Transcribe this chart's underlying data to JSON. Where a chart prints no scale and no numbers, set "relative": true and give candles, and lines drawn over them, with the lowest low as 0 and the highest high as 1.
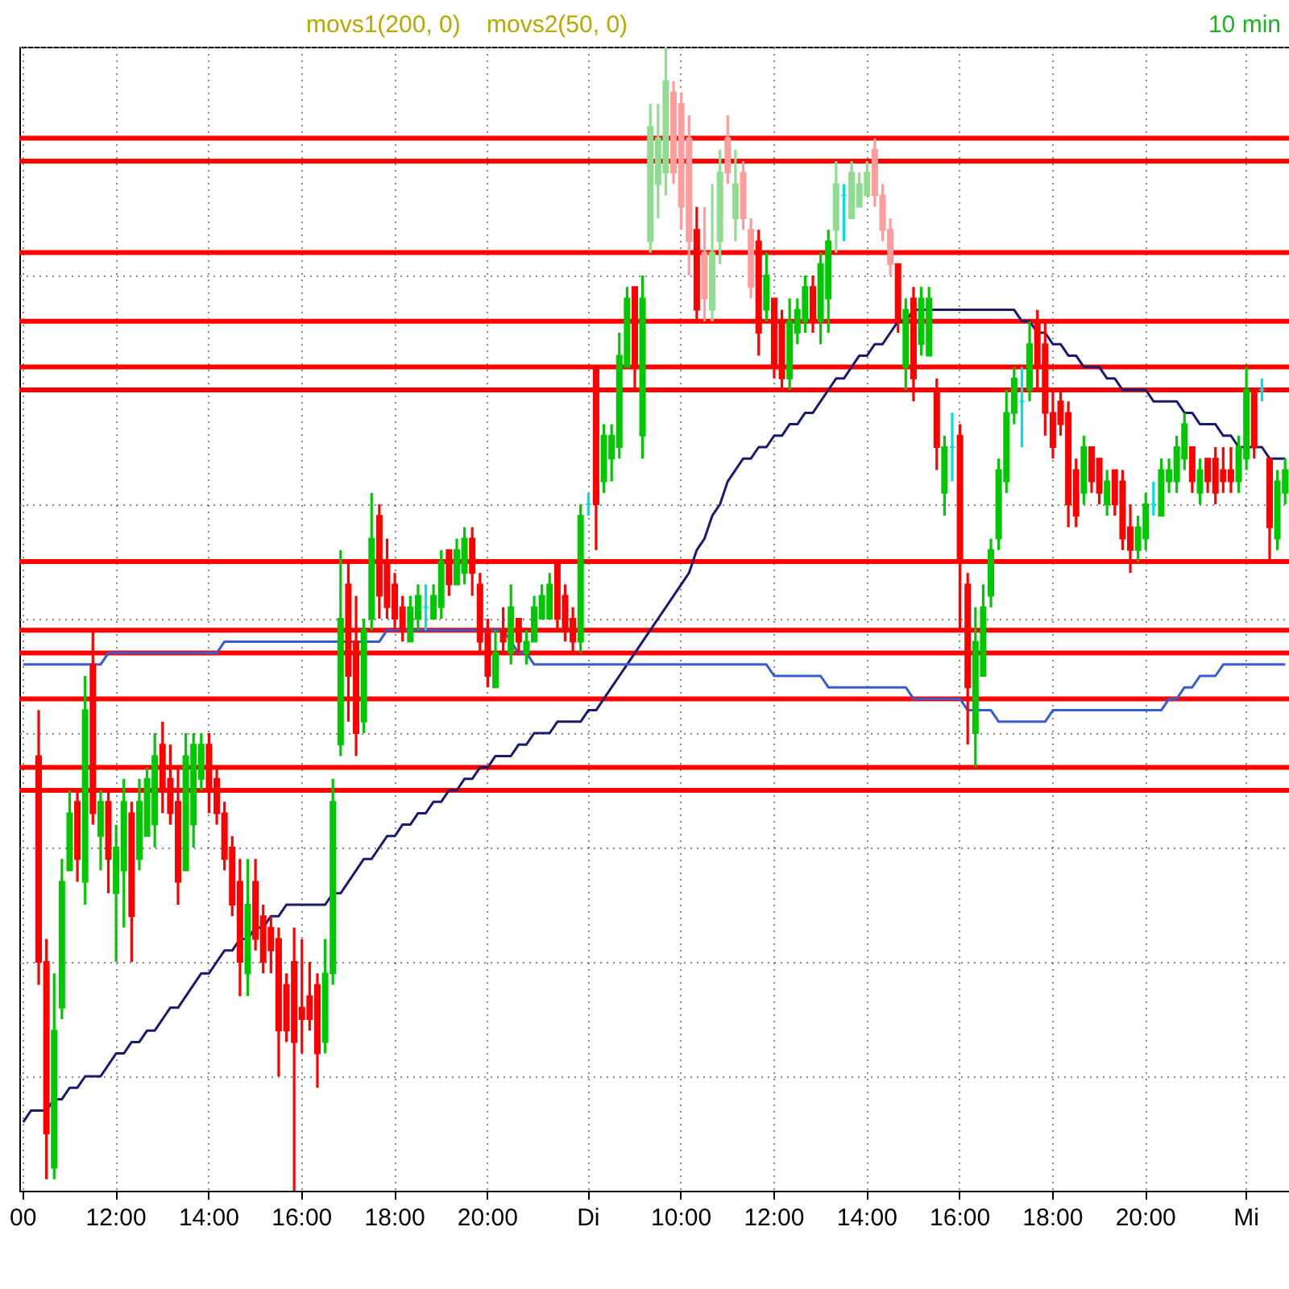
{
  "chart_data": {
    "type": "candlestick",
    "relative": true,
    "grid": true,
    "annotations": [
      "movs1(200, 0)",
      "movs2(50, 0)",
      "10 min"
    ],
    "categories": [
      "00",
      null,
      null,
      null,
      null,
      null,
      null,
      null,
      null,
      null,
      null,
      null,
      "12:00",
      null,
      null,
      null,
      null,
      null,
      null,
      null,
      null,
      null,
      null,
      null,
      "14:00",
      null,
      null,
      null,
      null,
      null,
      null,
      null,
      null,
      null,
      null,
      null,
      "16:00",
      null,
      null,
      null,
      null,
      null,
      null,
      null,
      null,
      null,
      null,
      null,
      "18:00",
      null,
      null,
      null,
      null,
      null,
      null,
      null,
      null,
      null,
      null,
      null,
      "20:00",
      null,
      null,
      null,
      null,
      null,
      null,
      null,
      null,
      null,
      null,
      null,
      null,
      "Di",
      null,
      null,
      null,
      null,
      null,
      null,
      null,
      null,
      null,
      null,
      null,
      "10:00",
      null,
      null,
      null,
      null,
      null,
      null,
      null,
      null,
      null,
      null,
      null,
      "12:00",
      null,
      null,
      null,
      null,
      null,
      null,
      null,
      null,
      null,
      null,
      null,
      "14:00",
      null,
      null,
      null,
      null,
      null,
      null,
      null,
      null,
      null,
      null,
      null,
      "16:00",
      null,
      null,
      null,
      null,
      null,
      null,
      null,
      null,
      null,
      null,
      null,
      "18:00",
      null,
      null,
      null,
      null,
      null,
      null,
      null,
      null,
      null,
      null,
      null,
      "20:00",
      null,
      null,
      null,
      null,
      null,
      null,
      null,
      null,
      null,
      null,
      null,
      null,
      "Mi",
      null,
      null,
      null,
      null,
      null
    ],
    "ohlc": [
      null,
      null,
      [
        0.38,
        0.42,
        0.18,
        0.2
      ],
      [
        0.2,
        0.22,
        0.01,
        0.05
      ],
      [
        0.02,
        0.19,
        0.01,
        0.14
      ],
      [
        0.16,
        0.29,
        0.15,
        0.27
      ],
      [
        0.28,
        0.35,
        0.28,
        0.33
      ],
      [
        0.34,
        0.35,
        0.27,
        0.29
      ],
      [
        0.27,
        0.45,
        0.25,
        0.42
      ],
      [
        0.46,
        0.49,
        0.32,
        0.33
      ],
      [
        0.31,
        0.35,
        0.28,
        0.34
      ],
      [
        0.34,
        0.35,
        0.26,
        0.29
      ],
      [
        0.26,
        0.32,
        0.2,
        0.3
      ],
      [
        0.28,
        0.36,
        0.23,
        0.34
      ],
      [
        0.33,
        0.34,
        0.2,
        0.24
      ],
      [
        0.29,
        0.36,
        0.28,
        0.34
      ],
      [
        0.31,
        0.37,
        0.31,
        0.36
      ],
      [
        0.32,
        0.4,
        0.3,
        0.38
      ],
      [
        0.39,
        0.41,
        0.33,
        0.35
      ],
      [
        0.36,
        0.39,
        0.32,
        0.33
      ],
      [
        0.34,
        0.37,
        0.25,
        0.27
      ],
      [
        0.28,
        0.4,
        0.28,
        0.38
      ],
      [
        0.32,
        0.4,
        0.3,
        0.39
      ],
      [
        0.36,
        0.4,
        0.35,
        0.39
      ],
      [
        0.39,
        0.4,
        0.33,
        0.35
      ],
      [
        0.36,
        0.37,
        0.32,
        0.33
      ],
      [
        0.33,
        0.34,
        0.28,
        0.29
      ],
      [
        0.3,
        0.31,
        0.24,
        0.25
      ],
      [
        0.27,
        0.29,
        0.17,
        0.2
      ],
      [
        0.19,
        0.29,
        0.17,
        0.25
      ],
      [
        0.27,
        0.29,
        0.21,
        0.22
      ],
      [
        0.24,
        0.25,
        0.19,
        0.2
      ],
      [
        0.23,
        0.24,
        0.19,
        0.21
      ],
      [
        0.22,
        0.23,
        0.1,
        0.14
      ],
      [
        0.18,
        0.19,
        0.13,
        0.14
      ],
      [
        0.2,
        0.23,
        0.0,
        0.13
      ],
      [
        0.16,
        0.22,
        0.12,
        0.15
      ],
      [
        0.17,
        0.2,
        0.14,
        0.15
      ],
      [
        0.18,
        0.19,
        0.09,
        0.12
      ],
      [
        0.13,
        0.22,
        0.12,
        0.19
      ],
      [
        0.19,
        0.36,
        0.18,
        0.34
      ],
      [
        0.39,
        0.56,
        0.38,
        0.5
      ],
      [
        0.53,
        0.55,
        0.41,
        0.45
      ],
      [
        0.48,
        0.52,
        0.38,
        0.4
      ],
      [
        0.41,
        0.5,
        0.4,
        0.49
      ],
      [
        0.5,
        0.61,
        0.49,
        0.57
      ],
      [
        0.59,
        0.6,
        0.5,
        0.52
      ],
      [
        0.55,
        0.57,
        0.5,
        0.51
      ],
      [
        0.53,
        0.54,
        0.49,
        0.5
      ],
      [
        0.51,
        0.52,
        0.48,
        0.49
      ],
      [
        0.48,
        0.52,
        0.48,
        0.51
      ],
      [
        0.5,
        0.53,
        0.49,
        0.52
      ],
      [
        0.51,
        0.53,
        0.49,
        0.51
      ],
      [
        0.5,
        0.53,
        0.5,
        0.52
      ],
      [
        0.51,
        0.56,
        0.5,
        0.55
      ],
      [
        0.56,
        0.56,
        0.52,
        0.53
      ],
      [
        0.53,
        0.57,
        0.53,
        0.56
      ],
      [
        0.54,
        0.58,
        0.53,
        0.57
      ],
      [
        0.57,
        0.58,
        0.52,
        0.54
      ],
      [
        0.53,
        0.54,
        0.47,
        0.48
      ],
      [
        0.49,
        0.5,
        0.44,
        0.45
      ],
      [
        0.44,
        0.49,
        0.44,
        0.47
      ],
      [
        0.49,
        0.51,
        0.47,
        0.48
      ],
      [
        0.47,
        0.53,
        0.46,
        0.51
      ],
      [
        0.5,
        0.5,
        0.47,
        0.48
      ],
      [
        0.47,
        0.49,
        0.46,
        0.48
      ],
      [
        0.48,
        0.52,
        0.48,
        0.51
      ],
      [
        0.5,
        0.53,
        0.5,
        0.52
      ],
      [
        0.5,
        0.54,
        0.5,
        0.53
      ],
      [
        0.55,
        0.55,
        0.49,
        0.5
      ],
      [
        0.52,
        0.53,
        0.48,
        0.49
      ],
      [
        0.5,
        0.51,
        0.47,
        0.48
      ],
      [
        0.48,
        0.6,
        0.47,
        0.59
      ],
      [
        0.6,
        0.61,
        0.59,
        0.6
      ],
      [
        0.72,
        0.72,
        0.56,
        0.6
      ],
      [
        0.62,
        0.67,
        0.61,
        0.66
      ],
      [
        0.64,
        0.67,
        0.62,
        0.66
      ],
      [
        0.65,
        0.75,
        0.64,
        0.73
      ],
      [
        0.72,
        0.79,
        0.72,
        0.78
      ],
      [
        0.79,
        0.79,
        0.7,
        0.72
      ],
      [
        0.66,
        0.8,
        0.64,
        0.78
      ],
      [
        0.83,
        0.95,
        0.82,
        0.93
      ],
      [
        0.88,
        0.95,
        0.85,
        0.92
      ],
      [
        0.89,
        1.0,
        0.87,
        0.97
      ],
      [
        0.96,
        0.97,
        0.88,
        0.89
      ],
      [
        0.95,
        0.96,
        0.84,
        0.86
      ],
      [
        0.92,
        0.94,
        0.8,
        0.83
      ],
      [
        0.84,
        0.86,
        0.76,
        0.77
      ],
      [
        0.82,
        0.86,
        0.76,
        0.78
      ],
      [
        0.77,
        0.88,
        0.76,
        0.82
      ],
      [
        0.83,
        0.91,
        0.81,
        0.89
      ],
      [
        0.92,
        0.94,
        0.88,
        0.89
      ],
      [
        0.85,
        0.91,
        0.83,
        0.88
      ],
      [
        0.89,
        0.9,
        0.84,
        0.85
      ],
      [
        0.84,
        0.85,
        0.78,
        0.79
      ],
      [
        0.83,
        0.84,
        0.73,
        0.75
      ],
      [
        0.77,
        0.82,
        0.76,
        0.8
      ],
      [
        0.78,
        0.78,
        0.71,
        0.72
      ],
      [
        0.76,
        0.77,
        0.7,
        0.71
      ],
      [
        0.71,
        0.78,
        0.7,
        0.76
      ],
      [
        0.75,
        0.78,
        0.74,
        0.77
      ],
      [
        0.76,
        0.8,
        0.75,
        0.79
      ],
      [
        0.79,
        0.8,
        0.75,
        0.76
      ],
      [
        0.76,
        0.82,
        0.74,
        0.81
      ],
      [
        0.78,
        0.84,
        0.75,
        0.83
      ],
      [
        0.84,
        0.9,
        0.82,
        0.88
      ],
      [
        0.87,
        0.88,
        0.83,
        0.87
      ],
      [
        0.85,
        0.9,
        0.85,
        0.89
      ],
      [
        0.86,
        0.89,
        0.86,
        0.88
      ],
      [
        0.87,
        0.9,
        0.87,
        0.89
      ],
      [
        0.91,
        0.92,
        0.86,
        0.87
      ],
      [
        0.87,
        0.88,
        0.83,
        0.84
      ],
      [
        0.84,
        0.85,
        0.8,
        0.81
      ],
      [
        0.81,
        0.81,
        0.75,
        0.76
      ],
      [
        0.72,
        0.78,
        0.7,
        0.77
      ],
      [
        0.78,
        0.79,
        0.69,
        0.71
      ],
      [
        0.74,
        0.79,
        0.73,
        0.78
      ],
      [
        0.73,
        0.79,
        0.73,
        0.78
      ],
      [
        0.7,
        0.71,
        0.63,
        0.65
      ],
      [
        0.61,
        0.66,
        0.59,
        0.65
      ],
      [
        0.65,
        0.68,
        0.62,
        0.65
      ],
      [
        0.66,
        0.67,
        0.49,
        0.55
      ],
      [
        0.53,
        0.54,
        0.39,
        0.44
      ],
      [
        0.4,
        0.51,
        0.37,
        0.48
      ],
      [
        0.45,
        0.53,
        0.45,
        0.51
      ],
      [
        0.52,
        0.57,
        0.51,
        0.56
      ],
      [
        0.57,
        0.64,
        0.56,
        0.63
      ],
      [
        0.62,
        0.7,
        0.61,
        0.68
      ],
      [
        0.68,
        0.72,
        0.67,
        0.71
      ],
      [
        0.69,
        0.72,
        0.65,
        0.69
      ],
      [
        0.7,
        0.76,
        0.69,
        0.74
      ],
      [
        0.76,
        0.77,
        0.7,
        0.72
      ],
      [
        0.74,
        0.76,
        0.66,
        0.68
      ],
      [
        0.68,
        0.7,
        0.64,
        0.65
      ],
      [
        0.69,
        0.7,
        0.66,
        0.67
      ],
      [
        0.68,
        0.69,
        0.58,
        0.6
      ],
      [
        0.63,
        0.64,
        0.58,
        0.59
      ],
      [
        0.61,
        0.66,
        0.6,
        0.65
      ],
      [
        0.65,
        0.65,
        0.61,
        0.62
      ],
      [
        0.64,
        0.64,
        0.6,
        0.61
      ],
      [
        0.6,
        0.63,
        0.59,
        0.62
      ],
      [
        0.63,
        0.63,
        0.59,
        0.6
      ],
      [
        0.62,
        0.63,
        0.56,
        0.57
      ],
      [
        0.58,
        0.6,
        0.54,
        0.56
      ],
      [
        0.56,
        0.59,
        0.55,
        0.58
      ],
      [
        0.57,
        0.61,
        0.56,
        0.6
      ],
      [
        0.6,
        0.62,
        0.59,
        0.6
      ],
      [
        0.59,
        0.64,
        0.59,
        0.63
      ],
      [
        0.62,
        0.64,
        0.61,
        0.63
      ],
      [
        0.62,
        0.66,
        0.61,
        0.65
      ],
      [
        0.64,
        0.68,
        0.63,
        0.67
      ],
      [
        0.65,
        0.65,
        0.61,
        0.62
      ],
      [
        0.61,
        0.64,
        0.6,
        0.63
      ],
      [
        0.64,
        0.64,
        0.61,
        0.62
      ],
      [
        0.64,
        0.65,
        0.6,
        0.61
      ],
      [
        0.63,
        0.65,
        0.61,
        0.62
      ],
      [
        0.63,
        0.65,
        0.61,
        0.62
      ],
      [
        0.62,
        0.66,
        0.61,
        0.65
      ],
      [
        0.64,
        0.72,
        0.63,
        0.7
      ],
      [
        0.7,
        0.7,
        0.64,
        0.65
      ],
      [
        0.7,
        0.71,
        0.69,
        0.7
      ],
      [
        0.64,
        0.64,
        0.55,
        0.58
      ],
      [
        0.57,
        0.63,
        0.56,
        0.62
      ],
      [
        0.61,
        0.64,
        0.6,
        0.63
      ]
    ],
    "colors": [
      null,
      null,
      "#ff0000",
      "#ff0000",
      "#00c800",
      "#00c800",
      "#00c800",
      "#ff0000",
      "#00c800",
      "#ff0000",
      "#00c800",
      "#ff0000",
      "#00c800",
      "#00c800",
      "#ff0000",
      "#00c800",
      "#00c800",
      "#00c800",
      "#ff0000",
      "#ff0000",
      "#ff0000",
      "#00c800",
      "#00c800",
      "#00c800",
      "#ff0000",
      "#ff0000",
      "#ff0000",
      "#ff0000",
      "#ff0000",
      "#00c800",
      "#ff0000",
      "#ff0000",
      "#ff0000",
      "#ff0000",
      "#ff0000",
      "#ff0000",
      "#ff0000",
      "#ff0000",
      "#ff0000",
      "#00c800",
      "#00c800",
      "#00c800",
      "#ff0000",
      "#ff0000",
      "#00c800",
      "#00c800",
      "#ff0000",
      "#ff0000",
      "#ff0000",
      "#ff0000",
      "#00c800",
      "#00c800",
      "#00e0e0",
      "#00c800",
      "#00c800",
      "#ff0000",
      "#00c800",
      "#00c800",
      "#ff0000",
      "#ff0000",
      "#ff0000",
      "#00c800",
      "#ff0000",
      "#00c800",
      "#ff0000",
      "#00c800",
      "#00c800",
      "#00c800",
      "#00c800",
      "#ff0000",
      "#ff0000",
      "#ff0000",
      "#00c800",
      "#00e0e0",
      "#ff0000",
      "#00c800",
      "#00c800",
      "#00c800",
      "#00c800",
      "#ff0000",
      "#00c800",
      "#90dc90",
      "#90dc90",
      "#90dc90",
      "#ff9c9c",
      "#ff9c9c",
      "#ff9c9c",
      "#ff0000",
      "#ff9c9c",
      "#90dc90",
      "#90dc90",
      "#ff9c9c",
      "#90dc90",
      "#ff9c9c",
      "#ff9c9c",
      "#ff0000",
      "#00c800",
      "#ff0000",
      "#ff0000",
      "#00c800",
      "#00c800",
      "#00c800",
      "#ff0000",
      "#00c800",
      "#00c800",
      "#90dc90",
      "#00e0e0",
      "#90dc90",
      "#90dc90",
      "#90dc90",
      "#ff9c9c",
      "#ff9c9c",
      "#ff9c9c",
      "#ff0000",
      "#00c800",
      "#ff0000",
      "#00c800",
      "#00c800",
      "#ff0000",
      "#00c800",
      "#00e0e0",
      "#ff0000",
      "#ff0000",
      "#00c800",
      "#00c800",
      "#00c800",
      "#00c800",
      "#00c800",
      "#00c800",
      "#00e0e0",
      "#00c800",
      "#ff0000",
      "#ff0000",
      "#ff0000",
      "#ff0000",
      "#ff0000",
      "#ff0000",
      "#00c800",
      "#ff0000",
      "#ff0000",
      "#00c800",
      "#ff0000",
      "#ff0000",
      "#ff0000",
      "#00c800",
      "#00c800",
      "#00e0e0",
      "#00c800",
      "#00c800",
      "#00c800",
      "#00c800",
      "#ff0000",
      "#00c800",
      "#ff0000",
      "#ff0000",
      "#ff0000",
      "#ff0000",
      "#00c800",
      "#00c800",
      "#ff0000",
      "#00e0e0",
      "#ff0000",
      "#00c800",
      "#00c800"
    ],
    "series": [
      {
        "type": "line",
        "color": "#1a1a6e",
        "values": [
          0.06,
          0.07,
          0.07,
          0.07,
          0.08,
          0.08,
          0.09,
          0.09,
          0.1,
          0.1,
          0.1,
          0.11,
          0.12,
          0.12,
          0.13,
          0.13,
          0.14,
          0.14,
          0.15,
          0.16,
          0.16,
          0.17,
          0.18,
          0.19,
          0.19,
          0.2,
          0.21,
          0.21,
          0.22,
          0.22,
          0.23,
          0.23,
          0.24,
          0.24,
          0.25,
          0.25,
          0.25,
          0.25,
          0.25,
          0.25,
          0.26,
          0.26,
          0.27,
          0.28,
          0.29,
          0.29,
          0.3,
          0.31,
          0.31,
          0.32,
          0.32,
          0.33,
          0.33,
          0.34,
          0.34,
          0.35,
          0.35,
          0.36,
          0.36,
          0.37,
          0.37,
          0.38,
          0.38,
          0.38,
          0.39,
          0.39,
          0.4,
          0.4,
          0.4,
          0.41,
          0.41,
          0.41,
          0.41,
          0.42,
          0.42,
          0.43,
          0.44,
          0.45,
          0.46,
          0.47,
          0.48,
          0.49,
          0.5,
          0.51,
          0.52,
          0.53,
          0.54,
          0.56,
          0.57,
          0.59,
          0.6,
          0.62,
          0.63,
          0.64,
          0.64,
          0.65,
          0.65,
          0.66,
          0.66,
          0.67,
          0.67,
          0.68,
          0.68,
          0.69,
          0.7,
          0.71,
          0.71,
          0.72,
          0.73,
          0.73,
          0.74,
          0.74,
          0.75,
          0.76,
          0.76,
          0.77,
          0.77,
          0.77,
          0.77,
          0.77,
          0.77,
          0.77,
          0.77,
          0.77,
          0.77,
          0.77,
          0.77,
          0.77,
          0.77,
          0.76,
          0.76,
          0.75,
          0.75,
          0.74,
          0.74,
          0.73,
          0.73,
          0.72,
          0.72,
          0.72,
          0.71,
          0.71,
          0.7,
          0.7,
          0.7,
          0.7,
          0.69,
          0.69,
          0.69,
          0.69,
          0.68,
          0.68,
          0.67,
          0.67,
          0.67,
          0.66,
          0.66,
          0.65,
          0.65,
          0.65,
          0.65,
          0.64,
          0.64,
          0.64
        ]
      },
      {
        "type": "line",
        "color": "#3a5ad0",
        "values": [
          0.46,
          0.46,
          0.46,
          0.46,
          0.46,
          0.46,
          0.46,
          0.46,
          0.46,
          0.46,
          0.46,
          0.47,
          0.47,
          0.47,
          0.47,
          0.47,
          0.47,
          0.47,
          0.47,
          0.47,
          0.47,
          0.47,
          0.47,
          0.47,
          0.47,
          0.47,
          0.48,
          0.48,
          0.48,
          0.48,
          0.48,
          0.48,
          0.48,
          0.48,
          0.48,
          0.48,
          0.48,
          0.48,
          0.48,
          0.48,
          0.48,
          0.48,
          0.48,
          0.48,
          0.48,
          0.48,
          0.48,
          0.49,
          0.49,
          0.49,
          0.49,
          0.49,
          0.49,
          0.49,
          0.49,
          0.49,
          0.49,
          0.49,
          0.49,
          0.49,
          0.49,
          0.49,
          0.49,
          0.48,
          0.47,
          0.47,
          0.46,
          0.46,
          0.46,
          0.46,
          0.46,
          0.46,
          0.46,
          0.46,
          0.46,
          0.46,
          0.46,
          0.46,
          0.46,
          0.46,
          0.46,
          0.46,
          0.46,
          0.46,
          0.46,
          0.46,
          0.46,
          0.46,
          0.46,
          0.46,
          0.46,
          0.46,
          0.46,
          0.46,
          0.46,
          0.46,
          0.46,
          0.45,
          0.45,
          0.45,
          0.45,
          0.45,
          0.45,
          0.45,
          0.44,
          0.44,
          0.44,
          0.44,
          0.44,
          0.44,
          0.44,
          0.44,
          0.44,
          0.44,
          0.44,
          0.43,
          0.43,
          0.43,
          0.43,
          0.43,
          0.43,
          0.43,
          0.42,
          0.42,
          0.42,
          0.42,
          0.41,
          0.41,
          0.41,
          0.41,
          0.41,
          0.41,
          0.41,
          0.42,
          0.42,
          0.42,
          0.42,
          0.42,
          0.42,
          0.42,
          0.42,
          0.42,
          0.42,
          0.42,
          0.42,
          0.42,
          0.42,
          0.42,
          0.43,
          0.43,
          0.44,
          0.44,
          0.45,
          0.45,
          0.45,
          0.46,
          0.46,
          0.46,
          0.46,
          0.46,
          0.46,
          0.46,
          0.46,
          0.46
        ]
      }
    ],
    "ref_lines": [
      {
        "axis": "y",
        "value": 0.92,
        "color": "#ff0000"
      },
      {
        "axis": "y",
        "value": 0.9,
        "color": "#ff0000"
      },
      {
        "axis": "y",
        "value": 0.82,
        "color": "#ff0000"
      },
      {
        "axis": "y",
        "value": 0.76,
        "color": "#ff0000"
      },
      {
        "axis": "y",
        "value": 0.72,
        "color": "#ff0000"
      },
      {
        "axis": "y",
        "value": 0.7,
        "color": "#ff0000"
      },
      {
        "axis": "y",
        "value": 0.55,
        "color": "#ff0000"
      },
      {
        "axis": "y",
        "value": 0.49,
        "color": "#ff0000"
      },
      {
        "axis": "y",
        "value": 0.47,
        "color": "#ff0000"
      },
      {
        "axis": "y",
        "value": 0.43,
        "color": "#ff0000"
      },
      {
        "axis": "y",
        "value": 0.37,
        "color": "#ff0000"
      },
      {
        "axis": "y",
        "value": 0.35,
        "color": "#ff0000"
      }
    ]
  }
}
